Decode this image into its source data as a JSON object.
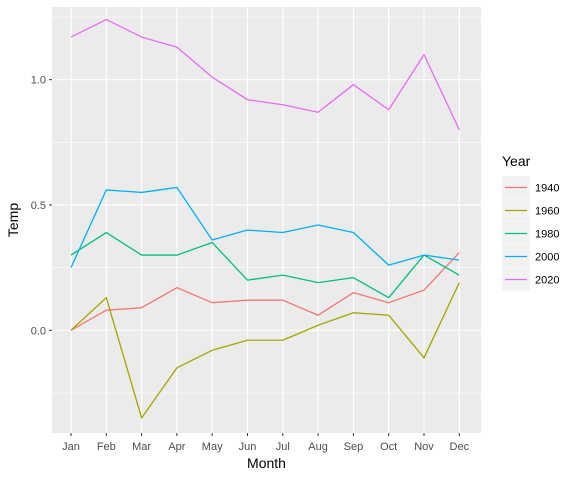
{
  "chart_data": {
    "type": "line",
    "xlabel": "Month",
    "ylabel": "Temp",
    "categories": [
      "Jan",
      "Feb",
      "Mar",
      "Apr",
      "May",
      "Jun",
      "Jul",
      "Aug",
      "Sep",
      "Oct",
      "Nov",
      "Dec"
    ],
    "ylim": [
      -0.41,
      1.29
    ],
    "y_ticks": [
      {
        "value": 0.0,
        "label": "0.0"
      },
      {
        "value": 0.5,
        "label": "0.5"
      },
      {
        "value": 1.0,
        "label": "1.0"
      }
    ],
    "grid": true,
    "legend": {
      "title": "Year",
      "position": "right"
    },
    "series": [
      {
        "name": "1940",
        "color": "#F8766D",
        "values": [
          0.0,
          0.08,
          0.09,
          0.17,
          0.11,
          0.12,
          0.12,
          0.06,
          0.15,
          0.11,
          0.16,
          0.31
        ]
      },
      {
        "name": "1960",
        "color": "#A3A500",
        "values": [
          0.0,
          0.13,
          -0.35,
          -0.15,
          -0.08,
          -0.04,
          -0.04,
          0.02,
          0.07,
          0.06,
          -0.11,
          0.19
        ]
      },
      {
        "name": "1980",
        "color": "#00BF7D",
        "values": [
          0.3,
          0.39,
          0.3,
          0.3,
          0.35,
          0.2,
          0.22,
          0.19,
          0.21,
          0.13,
          0.3,
          0.22
        ]
      },
      {
        "name": "2000",
        "color": "#00B0F6",
        "values": [
          0.25,
          0.56,
          0.55,
          0.57,
          0.36,
          0.4,
          0.39,
          0.42,
          0.39,
          0.26,
          0.3,
          0.28
        ]
      },
      {
        "name": "2020",
        "color": "#E76BF3",
        "values": [
          1.17,
          1.24,
          1.17,
          1.13,
          1.01,
          0.92,
          0.9,
          0.87,
          0.98,
          0.88,
          1.1,
          0.8
        ]
      }
    ]
  }
}
